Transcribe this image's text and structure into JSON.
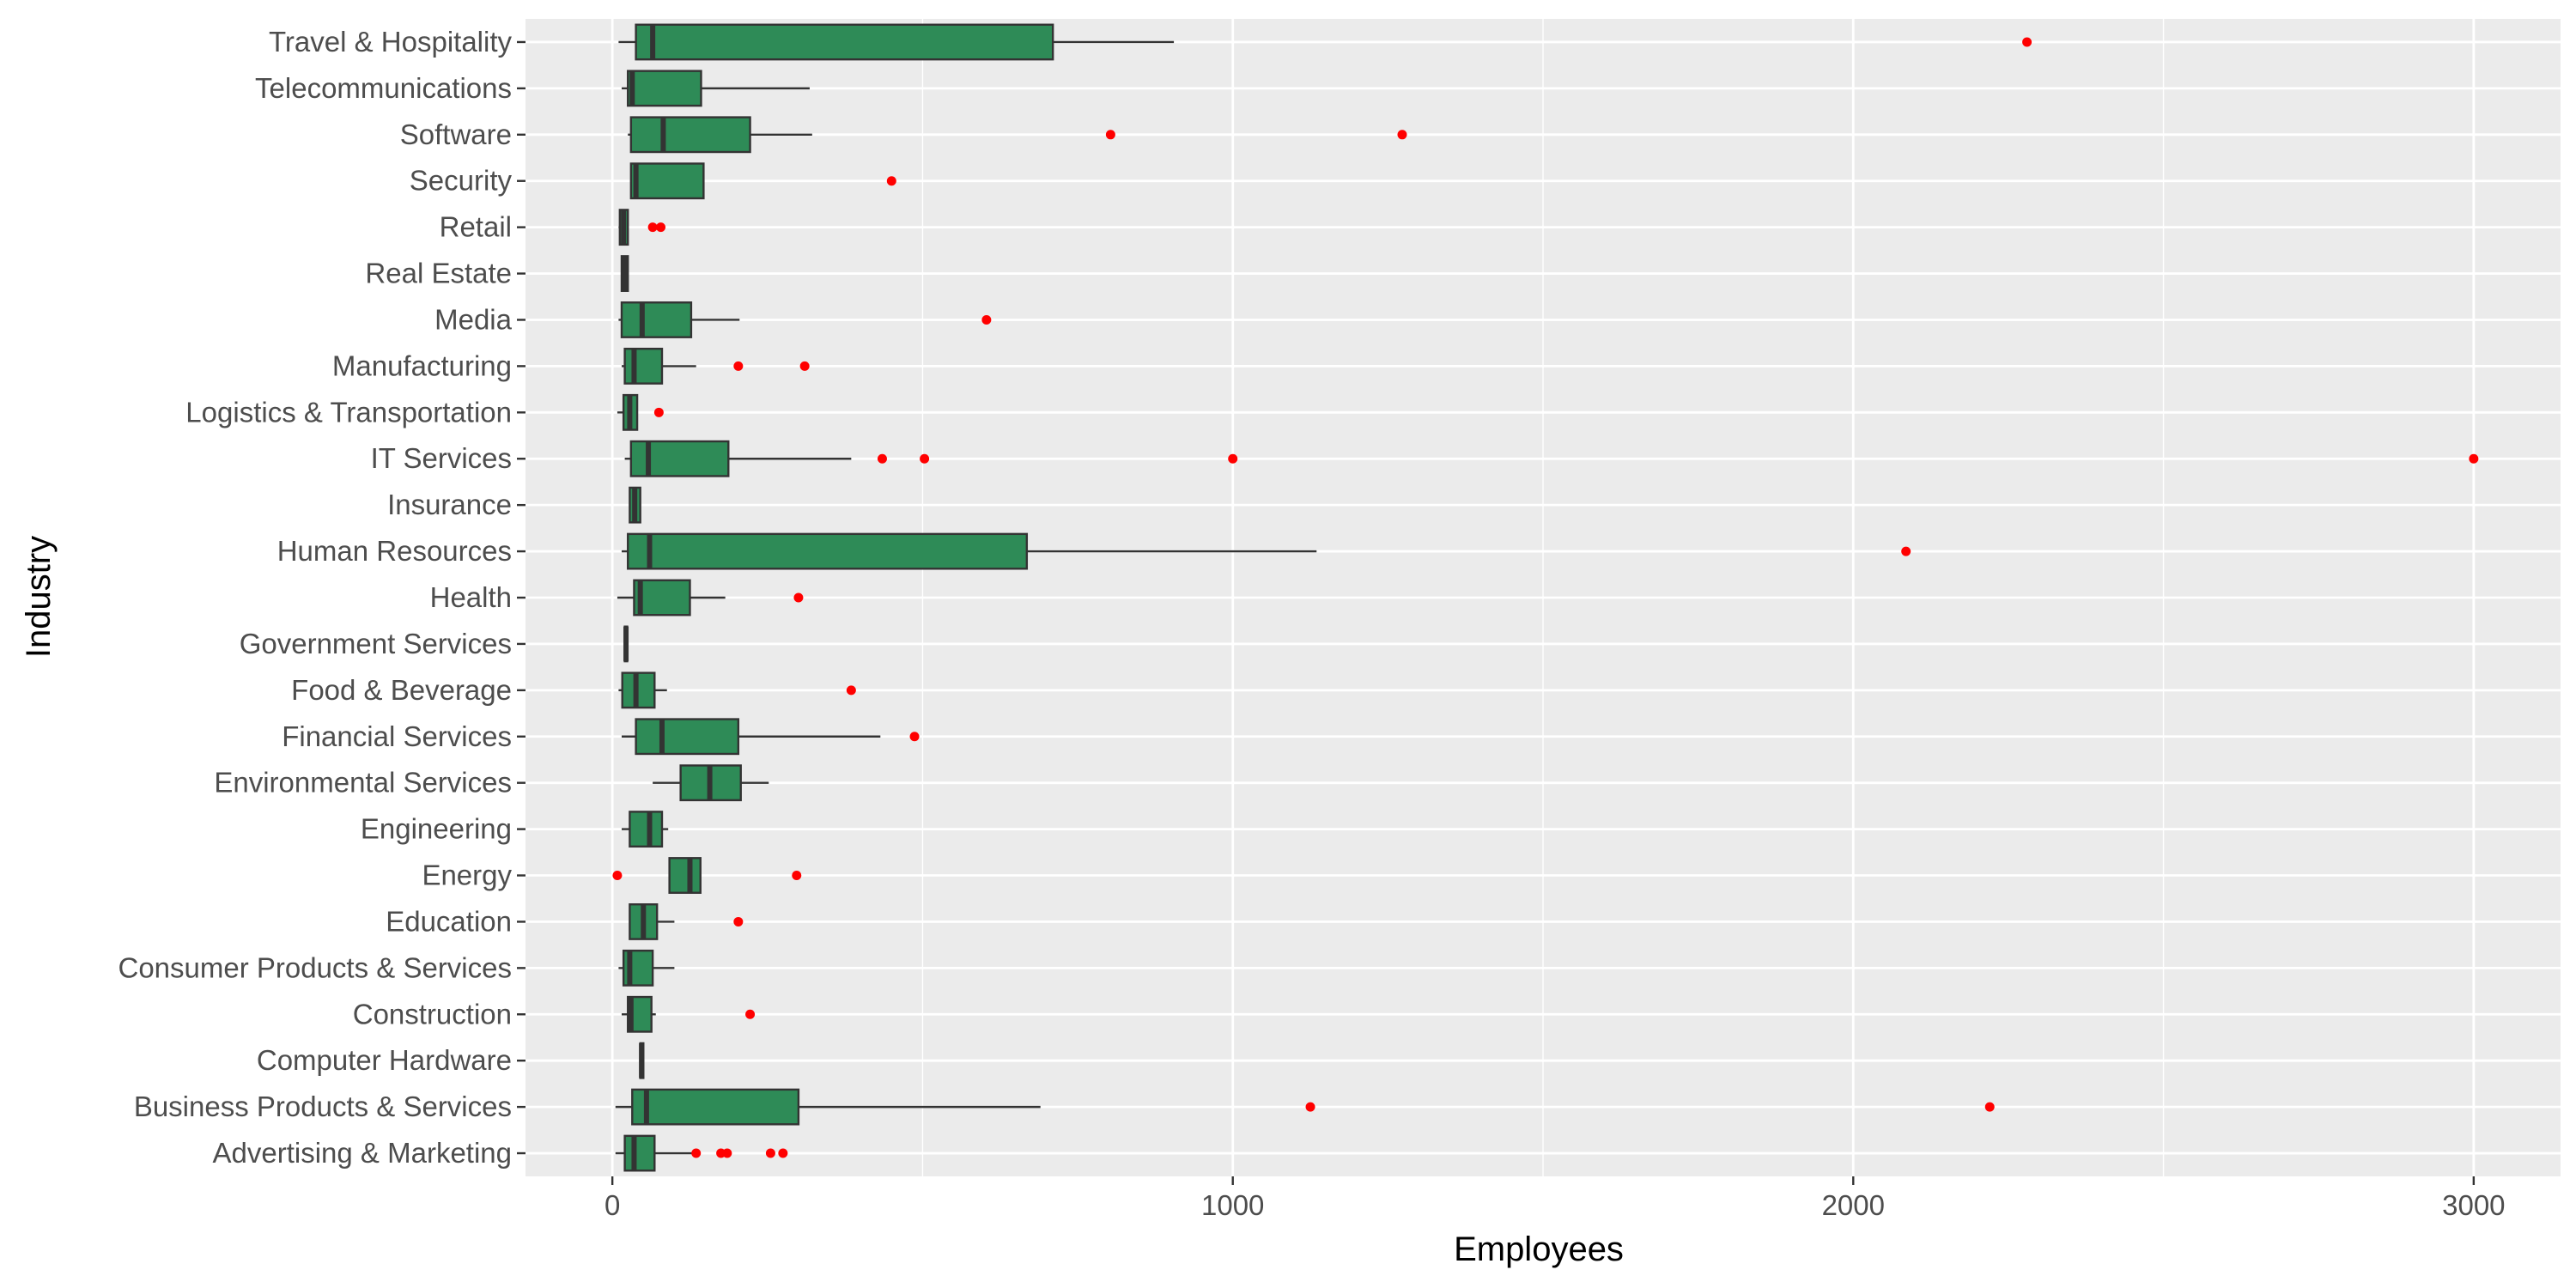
{
  "chart_data": {
    "type": "boxplot",
    "orientation": "horizontal",
    "xlabel": "Employees",
    "ylabel": "Industry",
    "xlim": [
      -140,
      3140
    ],
    "x_ticks": [
      0,
      1000,
      2000,
      3000
    ],
    "x_tick_labels": [
      "0",
      "1000",
      "2000",
      "3000"
    ],
    "grid": true,
    "colors": {
      "panel_background": "#ebebeb",
      "grid_line": "#ffffff",
      "box_fill": "#2e8b57",
      "box_stroke": "#333333",
      "outlier": "#ff0000"
    },
    "categories": [
      "Advertising & Marketing",
      "Business Products & Services",
      "Computer Hardware",
      "Construction",
      "Consumer Products & Services",
      "Education",
      "Energy",
      "Engineering",
      "Environmental Services",
      "Financial Services",
      "Food & Beverage",
      "Government Services",
      "Health",
      "Human Resources",
      "Insurance",
      "IT Services",
      "Logistics & Transportation",
      "Manufacturing",
      "Media",
      "Real Estate",
      "Retail",
      "Security",
      "Software",
      "Telecommunications",
      "Travel & Hospitality"
    ],
    "boxes": [
      {
        "category": "Advertising & Marketing",
        "whisker_low": 5,
        "q1": 20,
        "median": 35,
        "q3": 68,
        "whisker_high": 130,
        "outliers": [
          135,
          175,
          185,
          255,
          275
        ]
      },
      {
        "category": "Business Products & Services",
        "whisker_low": 5,
        "q1": 32,
        "median": 55,
        "q3": 300,
        "whisker_high": 690,
        "outliers": [
          1125,
          2220
        ]
      },
      {
        "category": "Computer Hardware",
        "whisker_low": 45,
        "q1": 45,
        "median": 47,
        "q3": 50,
        "whisker_high": 50,
        "outliers": []
      },
      {
        "category": "Construction",
        "whisker_low": 15,
        "q1": 25,
        "median": 30,
        "q3": 63,
        "whisker_high": 70,
        "outliers": [
          222
        ]
      },
      {
        "category": "Consumer Products & Services",
        "whisker_low": 10,
        "q1": 18,
        "median": 28,
        "q3": 65,
        "whisker_high": 100,
        "outliers": []
      },
      {
        "category": "Education",
        "whisker_low": 28,
        "q1": 28,
        "median": 50,
        "q3": 72,
        "whisker_high": 100,
        "outliers": [
          203
        ]
      },
      {
        "category": "Energy",
        "whisker_low": 92,
        "q1": 92,
        "median": 125,
        "q3": 142,
        "whisker_high": 142,
        "outliers": [
          8,
          297
        ]
      },
      {
        "category": "Engineering",
        "whisker_low": 15,
        "q1": 28,
        "median": 60,
        "q3": 80,
        "whisker_high": 90,
        "outliers": []
      },
      {
        "category": "Environmental Services",
        "whisker_low": 65,
        "q1": 110,
        "median": 157,
        "q3": 207,
        "whisker_high": 252,
        "outliers": []
      },
      {
        "category": "Financial Services",
        "whisker_low": 15,
        "q1": 38,
        "median": 80,
        "q3": 203,
        "whisker_high": 432,
        "outliers": [
          487
        ]
      },
      {
        "category": "Food & Beverage",
        "whisker_low": 10,
        "q1": 16,
        "median": 38,
        "q3": 68,
        "whisker_high": 88,
        "outliers": [
          385
        ]
      },
      {
        "category": "Government Services",
        "whisker_low": 20,
        "q1": 20,
        "median": 22,
        "q3": 24,
        "whisker_high": 24,
        "outliers": []
      },
      {
        "category": "Health",
        "whisker_low": 8,
        "q1": 35,
        "median": 45,
        "q3": 125,
        "whisker_high": 182,
        "outliers": [
          300
        ]
      },
      {
        "category": "Human Resources",
        "whisker_low": 15,
        "q1": 25,
        "median": 60,
        "q3": 668,
        "whisker_high": 1135,
        "outliers": [
          2085
        ]
      },
      {
        "category": "Insurance",
        "whisker_low": 28,
        "q1": 28,
        "median": 36,
        "q3": 45,
        "whisker_high": 45,
        "outliers": []
      },
      {
        "category": "IT Services",
        "whisker_low": 20,
        "q1": 30,
        "median": 58,
        "q3": 187,
        "whisker_high": 385,
        "outliers": [
          435,
          503,
          1000,
          3000
        ]
      },
      {
        "category": "Logistics & Transportation",
        "whisker_low": 8,
        "q1": 18,
        "median": 28,
        "q3": 40,
        "whisker_high": 40,
        "outliers": [
          75
        ]
      },
      {
        "category": "Manufacturing",
        "whisker_low": 15,
        "q1": 20,
        "median": 35,
        "q3": 80,
        "whisker_high": 135,
        "outliers": [
          203,
          310
        ]
      },
      {
        "category": "Media",
        "whisker_low": 10,
        "q1": 15,
        "median": 48,
        "q3": 127,
        "whisker_high": 205,
        "outliers": [
          603
        ]
      },
      {
        "category": "Real Estate",
        "whisker_low": 15,
        "q1": 15,
        "median": 20,
        "q3": 25,
        "whisker_high": 25,
        "outliers": []
      },
      {
        "category": "Retail",
        "whisker_low": 10,
        "q1": 12,
        "median": 18,
        "q3": 25,
        "whisker_high": 25,
        "outliers": [
          65,
          78
        ]
      },
      {
        "category": "Security",
        "whisker_low": 30,
        "q1": 30,
        "median": 38,
        "q3": 147,
        "whisker_high": 147,
        "outliers": [
          450
        ]
      },
      {
        "category": "Software",
        "whisker_low": 25,
        "q1": 30,
        "median": 82,
        "q3": 222,
        "whisker_high": 322,
        "outliers": [
          803,
          1273
        ]
      },
      {
        "category": "Telecommunications",
        "whisker_low": 15,
        "q1": 25,
        "median": 32,
        "q3": 143,
        "whisker_high": 318,
        "outliers": []
      },
      {
        "category": "Travel & Hospitality",
        "whisker_low": 10,
        "q1": 38,
        "median": 65,
        "q3": 710,
        "whisker_high": 905,
        "outliers": [
          2280
        ]
      }
    ]
  }
}
